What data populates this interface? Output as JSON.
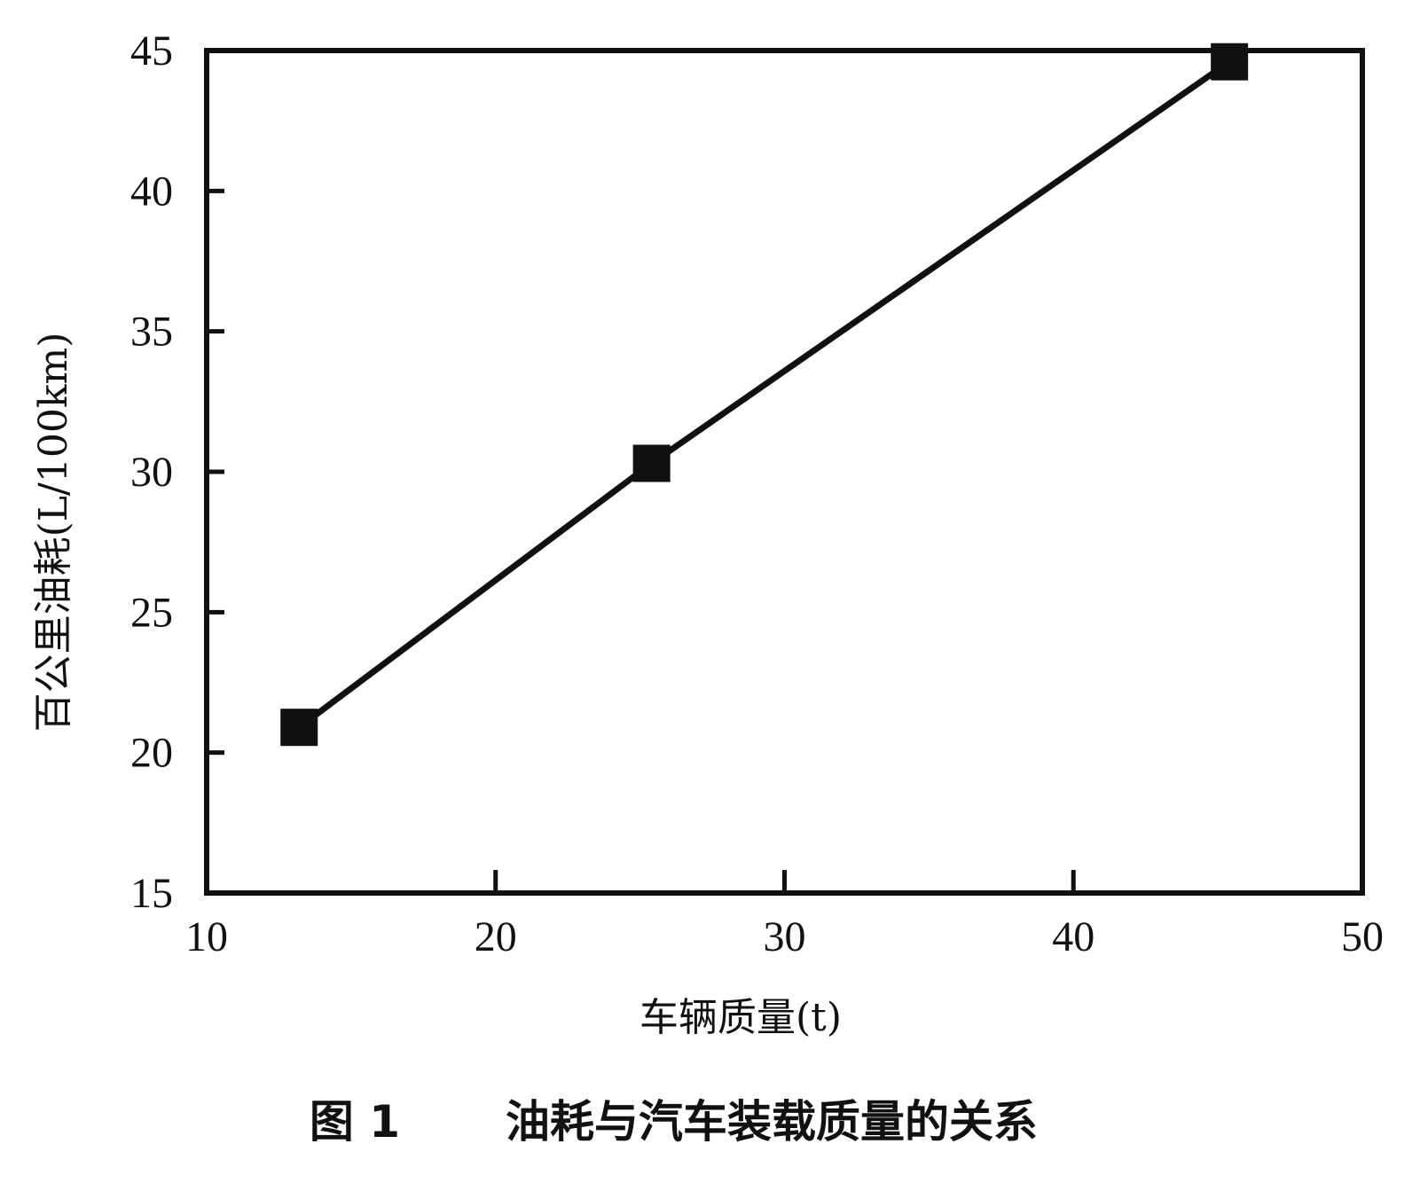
{
  "chart_data": {
    "type": "line",
    "title": "",
    "caption_label": "图 1",
    "caption_text": "油耗与汽车装载质量的关系",
    "xlabel": "车辆质量(t)",
    "ylabel": "百公里油耗(L/100km)",
    "xlim": [
      10,
      50
    ],
    "ylim": [
      15,
      45
    ],
    "xticks": [
      10,
      20,
      30,
      40,
      50
    ],
    "yticks": [
      15,
      20,
      25,
      30,
      35,
      40,
      45
    ],
    "grid": false,
    "legend": "none",
    "marker": "square",
    "color": "#111111",
    "series": [
      {
        "x": [
          13.2,
          25.4,
          45.4
        ],
        "y": [
          20.9,
          30.3,
          44.6
        ]
      }
    ]
  }
}
